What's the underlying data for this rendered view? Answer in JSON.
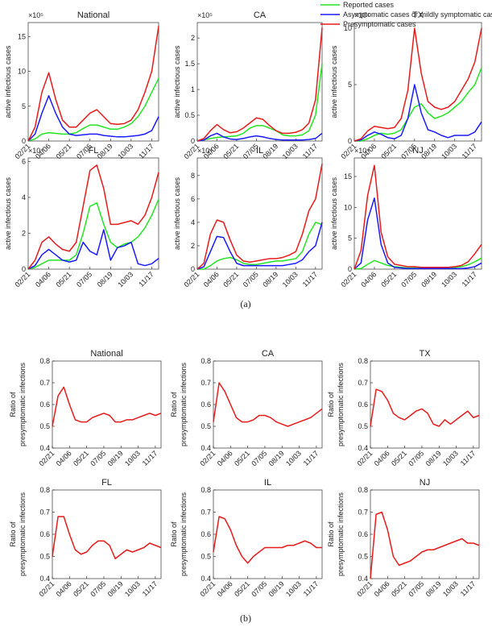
{
  "captions": [
    "(a)",
    "(b)"
  ],
  "chart_data": [
    {
      "type": "line",
      "title": "National",
      "ylabel": "active infectious cases",
      "annotation": "×10⁵",
      "legend": "upper right",
      "categories": [
        "02/21",
        null,
        null,
        "04/06",
        null,
        null,
        "05/21",
        null,
        null,
        "07/05",
        null,
        null,
        "08/19",
        null,
        null,
        "10/03",
        null,
        null,
        "11/17",
        null
      ],
      "ylim": [
        0,
        17
      ],
      "yticks": [
        0,
        5,
        10,
        15
      ],
      "series": [
        {
          "name": "Reported cases",
          "color": "#22e622",
          "values": [
            0,
            0.3,
            1,
            1.2,
            1.1,
            1.0,
            1.0,
            1.2,
            1.8,
            2.3,
            2.3,
            2.0,
            1.7,
            1.7,
            2,
            2.5,
            3.5,
            5,
            7,
            9
          ]
        },
        {
          "name": "Asymptomatic cases or mildly symptomatic cases",
          "color": "#1a1aff",
          "values": [
            0,
            1,
            4,
            6.5,
            4,
            2,
            1,
            0.8,
            0.9,
            1.0,
            1.0,
            0.8,
            0.7,
            0.6,
            0.6,
            0.7,
            0.8,
            1,
            1.5,
            3.5
          ]
        },
        {
          "name": "Presymptomatic cases",
          "color": "#e81b1b",
          "values": [
            0,
            2,
            7,
            9.8,
            6,
            3,
            2,
            2,
            3,
            4,
            4.5,
            3.5,
            2.5,
            2.4,
            2.5,
            3,
            4.5,
            7,
            10,
            16.5
          ]
        }
      ]
    },
    {
      "type": "line",
      "title": "CA",
      "ylabel": "active infectious cases",
      "annotation": "×10⁵",
      "categories": [
        "02/21",
        null,
        null,
        "04/06",
        null,
        null,
        "05/21",
        null,
        null,
        "07/05",
        null,
        null,
        "08/19",
        null,
        null,
        "10/03",
        null,
        null,
        "11/17",
        null
      ],
      "ylim": [
        0,
        2.3
      ],
      "yticks": [
        0,
        0.5,
        1,
        1.5,
        2
      ],
      "series": [
        {
          "color": "#22e622",
          "values": [
            0,
            0.02,
            0.05,
            0.07,
            0.08,
            0.09,
            0.1,
            0.15,
            0.25,
            0.3,
            0.3,
            0.25,
            0.2,
            0.12,
            0.1,
            0.1,
            0.12,
            0.2,
            0.5,
            1.5
          ]
        },
        {
          "color": "#1a1aff",
          "values": [
            0,
            0.02,
            0.1,
            0.15,
            0.08,
            0.04,
            0.03,
            0.05,
            0.08,
            0.1,
            0.08,
            0.05,
            0.03,
            0.02,
            0.02,
            0.02,
            0.02,
            0.03,
            0.05,
            0.15
          ]
        },
        {
          "color": "#e81b1b",
          "values": [
            0,
            0.05,
            0.2,
            0.32,
            0.22,
            0.16,
            0.18,
            0.25,
            0.35,
            0.45,
            0.42,
            0.3,
            0.2,
            0.15,
            0.15,
            0.17,
            0.22,
            0.35,
            0.8,
            2.2
          ]
        }
      ]
    },
    {
      "type": "line",
      "title": "TX",
      "ylabel": "active infectious cases",
      "annotation": "×10⁴",
      "categories": [
        "02/21",
        null,
        null,
        "04/06",
        null,
        null,
        "05/21",
        null,
        null,
        "07/05",
        null,
        null,
        "08/19",
        null,
        null,
        "10/03",
        null,
        null,
        "11/17",
        null
      ],
      "ylim": [
        0,
        10.5
      ],
      "yticks": [
        0,
        5,
        10
      ],
      "series": [
        {
          "color": "#22e622",
          "values": [
            0,
            0,
            0.2,
            0.5,
            0.7,
            0.6,
            0.7,
            1,
            2,
            3,
            3.3,
            2.5,
            2,
            2.2,
            2.5,
            3,
            3.5,
            4.3,
            5,
            6.5
          ]
        },
        {
          "color": "#1a1aff",
          "values": [
            0,
            0.1,
            0.5,
            0.8,
            0.6,
            0.3,
            0.2,
            0.5,
            2,
            5,
            2.5,
            1,
            0.8,
            0.5,
            0.3,
            0.5,
            0.5,
            0.5,
            0.8,
            1.7
          ]
        },
        {
          "color": "#e81b1b",
          "values": [
            0,
            0.2,
            0.9,
            1.3,
            1.2,
            1.1,
            1.2,
            2,
            4.5,
            10,
            6,
            3.5,
            3,
            2.8,
            3,
            3.5,
            4.5,
            5.5,
            7,
            10
          ]
        }
      ]
    },
    {
      "type": "line",
      "title": "FL",
      "ylabel": "active infectious cases",
      "annotation": "×10⁴",
      "categories": [
        "02/21",
        null,
        null,
        "04/06",
        null,
        null,
        "05/21",
        null,
        null,
        "07/05",
        null,
        null,
        "08/19",
        null,
        null,
        "10/03",
        null,
        null,
        "11/17",
        null
      ],
      "ylim": [
        0,
        6.2
      ],
      "yticks": [
        0,
        2,
        4,
        6
      ],
      "series": [
        {
          "color": "#22e622",
          "values": [
            0,
            0.1,
            0.3,
            0.5,
            0.5,
            0.5,
            0.5,
            0.8,
            2,
            3.5,
            3.7,
            2.5,
            1.5,
            1.2,
            1.4,
            1.5,
            1.8,
            2.3,
            3,
            3.9
          ]
        },
        {
          "color": "#1a1aff",
          "values": [
            0,
            0.2,
            0.8,
            1.1,
            0.8,
            0.5,
            0.4,
            0.5,
            1.5,
            1.0,
            0.8,
            2.2,
            0.5,
            1.2,
            1.3,
            1.5,
            0.3,
            0.2,
            0.3,
            0.6
          ]
        },
        {
          "color": "#e81b1b",
          "values": [
            0,
            0.5,
            1.5,
            1.8,
            1.4,
            1.1,
            1.0,
            1.5,
            3.5,
            5.5,
            5.8,
            4.5,
            2.5,
            2.5,
            2.6,
            2.7,
            2.5,
            3,
            4,
            5.4
          ]
        }
      ]
    },
    {
      "type": "line",
      "title": "IL",
      "ylabel": "active infectious cases",
      "annotation": "×10⁴",
      "categories": [
        "02/21",
        null,
        null,
        "04/06",
        null,
        null,
        "05/21",
        null,
        null,
        "07/05",
        null,
        null,
        "08/19",
        null,
        null,
        "10/03",
        null,
        null,
        "11/17",
        null
      ],
      "ylim": [
        0,
        9.5
      ],
      "yticks": [
        0,
        2,
        4,
        6,
        8
      ],
      "series": [
        {
          "color": "#22e622",
          "values": [
            0,
            0,
            0.3,
            0.7,
            0.9,
            1.0,
            0.8,
            0.5,
            0.4,
            0.4,
            0.5,
            0.6,
            0.7,
            0.7,
            0.8,
            0.9,
            1.5,
            3,
            4,
            3.8
          ]
        },
        {
          "color": "#1a1aff",
          "values": [
            0,
            0.2,
            1.5,
            2.8,
            2.7,
            1.5,
            0.5,
            0.3,
            0.3,
            0.3,
            0.3,
            0.3,
            0.3,
            0.3,
            0.4,
            0.5,
            0.8,
            1.5,
            2,
            4
          ]
        },
        {
          "color": "#e81b1b",
          "values": [
            0,
            0.5,
            3,
            4.2,
            4,
            2.5,
            1.2,
            0.7,
            0.6,
            0.7,
            0.8,
            0.9,
            0.9,
            1,
            1.2,
            1.5,
            3,
            5,
            6,
            9
          ]
        }
      ]
    },
    {
      "type": "line",
      "title": "NJ",
      "ylabel": "active infectious cases",
      "annotation": "×10⁴",
      "categories": [
        "02/21",
        null,
        null,
        "04/06",
        null,
        null,
        "05/21",
        null,
        null,
        "07/05",
        null,
        null,
        "08/19",
        null,
        null,
        "10/03",
        null,
        null,
        "11/17",
        null
      ],
      "ylim": [
        0,
        18
      ],
      "yticks": [
        0,
        5,
        10,
        15
      ],
      "series": [
        {
          "color": "#22e622",
          "values": [
            0,
            0.1,
            0.8,
            1.4,
            1.0,
            0.6,
            0.4,
            0.3,
            0.2,
            0.2,
            0.2,
            0.2,
            0.2,
            0.2,
            0.2,
            0.3,
            0.4,
            0.7,
            1.2,
            1.8
          ]
        },
        {
          "color": "#1a1aff",
          "values": [
            0,
            1,
            8,
            11.5,
            4,
            1,
            0.3,
            0.2,
            0.1,
            0.1,
            0.1,
            0.1,
            0.1,
            0.1,
            0.1,
            0.1,
            0.1,
            0.2,
            0.4,
            1
          ]
        },
        {
          "color": "#e81b1b",
          "values": [
            0,
            3,
            12,
            16.8,
            6,
            2,
            0.8,
            0.6,
            0.4,
            0.4,
            0.3,
            0.3,
            0.3,
            0.3,
            0.3,
            0.4,
            0.6,
            1.2,
            2.5,
            4
          ]
        }
      ]
    },
    {
      "type": "line",
      "title": "National",
      "ylabel": [
        "Ratio of",
        "presymptomatic infections"
      ],
      "categories": [
        "02/21",
        null,
        null,
        "04/06",
        null,
        null,
        "05/21",
        null,
        null,
        "07/05",
        null,
        null,
        "08/19",
        null,
        null,
        "10/03",
        null,
        null,
        "11/17",
        null
      ],
      "ylim": [
        0.4,
        0.8
      ],
      "yticks": [
        0.4,
        0.5,
        0.6,
        0.7,
        0.8
      ],
      "series": [
        {
          "color": "#e81b1b",
          "values": [
            0.5,
            0.64,
            0.68,
            0.6,
            0.53,
            0.52,
            0.52,
            0.54,
            0.55,
            0.56,
            0.55,
            0.52,
            0.52,
            0.53,
            0.53,
            0.54,
            0.55,
            0.56,
            0.55,
            0.56
          ]
        }
      ]
    },
    {
      "type": "line",
      "title": "CA",
      "ylabel": [
        "Ratio of",
        "presymptomatic infections"
      ],
      "categories": [
        "02/21",
        null,
        null,
        "04/06",
        null,
        null,
        "05/21",
        null,
        null,
        "07/05",
        null,
        null,
        "08/19",
        null,
        null,
        "10/03",
        null,
        null,
        "11/17",
        null
      ],
      "ylim": [
        0.4,
        0.8
      ],
      "yticks": [
        0.4,
        0.5,
        0.6,
        0.7,
        0.8
      ],
      "series": [
        {
          "color": "#e81b1b",
          "values": [
            0.52,
            0.7,
            0.66,
            0.6,
            0.54,
            0.52,
            0.52,
            0.53,
            0.55,
            0.55,
            0.54,
            0.52,
            0.51,
            0.5,
            0.51,
            0.52,
            0.53,
            0.54,
            0.56,
            0.58
          ]
        }
      ]
    },
    {
      "type": "line",
      "title": "TX",
      "ylabel": [
        "Ratio of",
        "presymptomatic infections"
      ],
      "categories": [
        "02/21",
        null,
        null,
        "04/06",
        null,
        null,
        "05/21",
        null,
        null,
        "07/05",
        null,
        null,
        "08/19",
        null,
        null,
        "10/03",
        null,
        null,
        "11/17",
        null
      ],
      "ylim": [
        0.4,
        0.8
      ],
      "yticks": [
        0.4,
        0.5,
        0.6,
        0.7,
        0.8
      ],
      "series": [
        {
          "color": "#e81b1b",
          "values": [
            0.5,
            0.67,
            0.66,
            0.62,
            0.56,
            0.54,
            0.53,
            0.55,
            0.57,
            0.58,
            0.56,
            0.51,
            0.5,
            0.53,
            0.51,
            0.53,
            0.55,
            0.57,
            0.54,
            0.55
          ]
        }
      ]
    },
    {
      "type": "line",
      "title": "FL",
      "ylabel": [
        "Ratio of",
        "presymptomatic infections"
      ],
      "categories": [
        "02/21",
        null,
        null,
        "04/06",
        null,
        null,
        "05/21",
        null,
        null,
        "07/05",
        null,
        null,
        "08/19",
        null,
        null,
        "10/03",
        null,
        null,
        "11/17",
        null
      ],
      "ylim": [
        0.4,
        0.8
      ],
      "yticks": [
        0.4,
        0.5,
        0.6,
        0.7,
        0.8
      ],
      "series": [
        {
          "color": "#e81b1b",
          "values": [
            0.5,
            0.68,
            0.68,
            0.6,
            0.53,
            0.51,
            0.52,
            0.55,
            0.57,
            0.57,
            0.55,
            0.49,
            0.51,
            0.53,
            0.52,
            0.53,
            0.54,
            0.56,
            0.55,
            0.54
          ]
        }
      ]
    },
    {
      "type": "line",
      "title": "IL",
      "ylabel": [
        "Ratio of",
        "presymptomatic infections"
      ],
      "categories": [
        "02/21",
        null,
        null,
        "04/06",
        null,
        null,
        "05/21",
        null,
        null,
        "07/05",
        null,
        null,
        "08/19",
        null,
        null,
        "10/03",
        null,
        null,
        "11/17",
        null
      ],
      "ylim": [
        0.4,
        0.8
      ],
      "yticks": [
        0.4,
        0.5,
        0.6,
        0.7,
        0.8
      ],
      "series": [
        {
          "color": "#e81b1b",
          "values": [
            0.52,
            0.68,
            0.67,
            0.62,
            0.55,
            0.5,
            0.47,
            0.5,
            0.52,
            0.54,
            0.54,
            0.54,
            0.54,
            0.55,
            0.55,
            0.56,
            0.57,
            0.56,
            0.54,
            0.54
          ]
        }
      ]
    },
    {
      "type": "line",
      "title": "NJ",
      "ylabel": [
        "Ratio of",
        "presymptomatic infections"
      ],
      "categories": [
        "02/21",
        null,
        null,
        "04/06",
        null,
        null,
        "05/21",
        null,
        null,
        "07/05",
        null,
        null,
        "08/19",
        null,
        null,
        "10/03",
        null,
        null,
        "11/17",
        null
      ],
      "ylim": [
        0.4,
        0.8
      ],
      "yticks": [
        0.4,
        0.5,
        0.6,
        0.7,
        0.8
      ],
      "series": [
        {
          "color": "#e81b1b",
          "values": [
            0.4,
            0.69,
            0.7,
            0.62,
            0.5,
            0.46,
            0.47,
            0.48,
            0.5,
            0.52,
            0.53,
            0.53,
            0.54,
            0.55,
            0.56,
            0.57,
            0.58,
            0.56,
            0.56,
            0.55
          ]
        }
      ]
    }
  ]
}
